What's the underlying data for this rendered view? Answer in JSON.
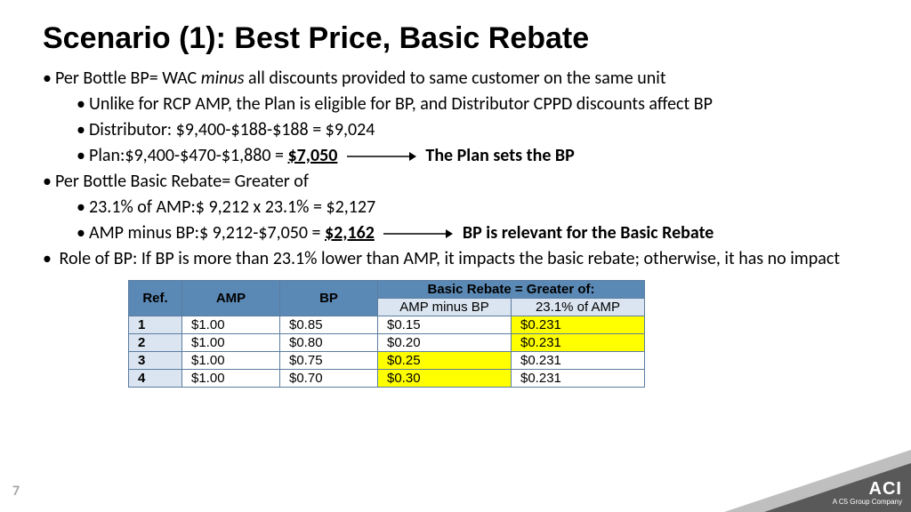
{
  "title": "Scenario (1): Best Price, Basic Rebate",
  "bullets": {
    "l1a_pre": "Per Bottle BP= WAC ",
    "l1a_em": "minus",
    "l1a_post": " all discounts provided to same customer on the same unit",
    "l1a1": "Unlike for RCP AMP, the Plan is eligible for BP, and Distributor CPPD discounts affect BP",
    "l1a2": "Distributor:   $9,400-$188-$188 = $9,024",
    "l1a3_pre": "Plan:$9,400-$470-$1,880     = ",
    "l1a3_val": "$7,050",
    "l1a3_post": "The Plan sets the BP",
    "l1b": "Per Bottle Basic Rebate= Greater of",
    "l1b1": "23.1% of AMP:$ 9,212 x 23.1%  = $2,127",
    "l1b2_pre": "AMP minus BP:$ 9,212-$7,050 = ",
    "l1b2_val": "$2,162",
    "l1b2_post": "BP is relevant for the Basic Rebate",
    "l1c": " Role of BP: If BP is more than 23.1% lower than AMP, it impacts the basic rebate; otherwise, it has no impact"
  },
  "table": {
    "header_span": "Basic Rebate = Greater of:",
    "cols": [
      "Ref.",
      "AMP",
      "BP",
      "AMP minus BP",
      "23.1% of AMP"
    ],
    "rows": [
      {
        "ref": "1",
        "amp": "$1.00",
        "bp": "$0.85",
        "minus": "$0.15",
        "pct": "$0.231",
        "hl": "pct"
      },
      {
        "ref": "2",
        "amp": "$1.00",
        "bp": "$0.80",
        "minus": "$0.20",
        "pct": "$0.231",
        "hl": "pct"
      },
      {
        "ref": "3",
        "amp": "$1.00",
        "bp": "$0.75",
        "minus": "$0.25",
        "pct": "$0.231",
        "hl": "minus"
      },
      {
        "ref": "4",
        "amp": "$1.00",
        "bp": "$0.70",
        "minus": "$0.30",
        "pct": "$0.231",
        "hl": "minus"
      }
    ],
    "colors": {
      "header_bg": "#5b89b5",
      "border": "#5b7ca0",
      "ref_bg": "#dbe5f1",
      "highlight": "#ffff00"
    }
  },
  "page": "7",
  "logo": {
    "big": "ACI",
    "small": "A C5 Group Company"
  }
}
